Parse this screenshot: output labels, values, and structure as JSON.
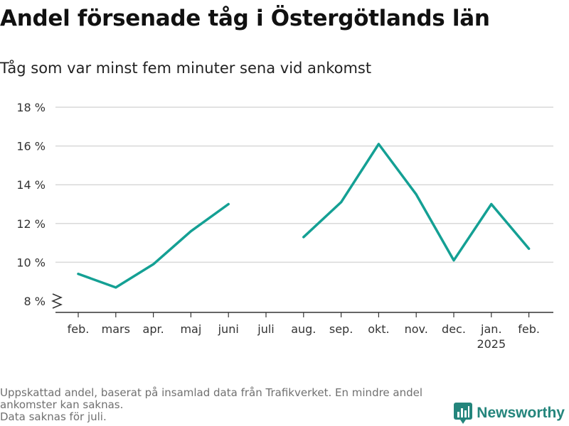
{
  "header": {
    "title": "Andel försenade tåg i Östergötlands län",
    "subtitle": "Tåg som var minst fem minuter sena vid ankomst"
  },
  "footnote": {
    "line1": "Uppskattad andel, baserat på insamlad data från Trafikverket. En mindre andel",
    "line2": "ankomster kan saknas.",
    "line3": "Data saknas för juli."
  },
  "brand": {
    "name": "Newsworthy",
    "color": "#24857c",
    "icon": "bar-chart-icon"
  },
  "colors": {
    "line": "#14a094",
    "grid": "#d9d9d9",
    "axis": "#333333"
  },
  "chart_data": {
    "type": "line",
    "title": "Andel försenade tåg i Östergötlands län",
    "categories": [
      "feb.",
      "mars",
      "apr.",
      "maj",
      "juni",
      "juli",
      "aug.",
      "sep.",
      "okt.",
      "nov.",
      "dec.",
      "jan.",
      "feb."
    ],
    "year_labels": [
      "",
      "",
      "",
      "",
      "",
      "",
      "",
      "",
      "",
      "",
      "",
      "2025",
      ""
    ],
    "series": [
      {
        "values": [
          9.4,
          8.7,
          9.9,
          11.6,
          13.0,
          null,
          11.3,
          13.1,
          16.1,
          13.5,
          10.1,
          13.0,
          10.7
        ]
      }
    ],
    "ylim": [
      8,
      18
    ],
    "yticks": [
      8,
      10,
      12,
      14,
      16,
      18
    ],
    "tick_suffix": " %",
    "y_axis_break": true,
    "grid": true,
    "legend": "none"
  }
}
